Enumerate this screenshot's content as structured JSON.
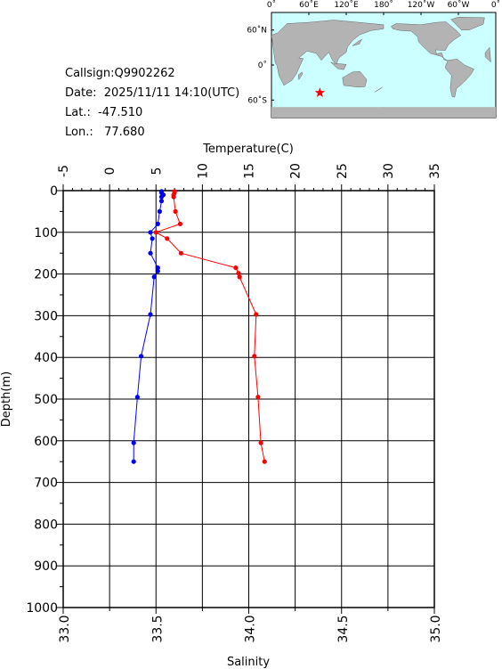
{
  "info": {
    "callsign": "Callsign:Q9902262",
    "date": "Date:  2025/11/11 14:10(UTC)",
    "lat": "Lat.:  -47.510",
    "lon": "Lon.:   77.680"
  },
  "map": {
    "lon_labels": [
      "0˚",
      "60˚E",
      "120˚E",
      "180˚",
      "120˚W",
      "60˚W",
      "0˚"
    ],
    "lat_labels": [
      "60˚N",
      "0˚",
      "60˚S"
    ],
    "ocean_color": "#ccffff",
    "land_color": "#b3b3b3",
    "marker": {
      "lon": 77.68,
      "lat": -47.51,
      "symbol": "star",
      "color": "#ff0000"
    }
  },
  "chart_data": {
    "type": "line",
    "ylabel": "Depth(m)",
    "ylim": [
      1000,
      0
    ],
    "y_ticks": [
      "0",
      "100",
      "200",
      "300",
      "400",
      "500",
      "600",
      "700",
      "800",
      "900",
      "1000"
    ],
    "grid": true,
    "x_top": {
      "label": "Temperature(C)",
      "lim": [
        -5,
        35
      ],
      "ticks": [
        "-5",
        "0",
        "5",
        "10",
        "15",
        "20",
        "25",
        "30",
        "35"
      ]
    },
    "x_bottom": {
      "label": "Salinity",
      "lim": [
        33.0,
        35.0
      ],
      "ticks": [
        "33.0",
        "33.5",
        "34.0",
        "34.5",
        "35.0"
      ]
    },
    "series": [
      {
        "axis": "x_top",
        "color": "#ff0000",
        "points": [
          [
            7.0,
            2
          ],
          [
            7.0,
            5
          ],
          [
            6.9,
            10
          ],
          [
            6.9,
            15
          ],
          [
            7.1,
            50
          ],
          [
            7.6,
            80
          ],
          [
            5.0,
            100
          ],
          [
            6.2,
            115
          ],
          [
            7.7,
            150
          ],
          [
            13.6,
            185
          ],
          [
            13.9,
            198
          ],
          [
            14.0,
            207
          ],
          [
            15.8,
            297
          ],
          [
            15.6,
            397
          ],
          [
            16.0,
            495
          ],
          [
            16.3,
            605
          ],
          [
            16.7,
            650
          ]
        ]
      },
      {
        "axis": "x_bottom",
        "color": "#0000ff",
        "points": [
          [
            33.53,
            2
          ],
          [
            33.53,
            5
          ],
          [
            33.54,
            10
          ],
          [
            33.53,
            15
          ],
          [
            33.53,
            25
          ],
          [
            33.52,
            50
          ],
          [
            33.51,
            80
          ],
          [
            33.47,
            100
          ],
          [
            33.48,
            115
          ],
          [
            33.47,
            150
          ],
          [
            33.51,
            185
          ],
          [
            33.51,
            193
          ],
          [
            33.49,
            207
          ],
          [
            33.47,
            297
          ],
          [
            33.42,
            397
          ],
          [
            33.4,
            495
          ],
          [
            33.38,
            605
          ],
          [
            33.38,
            650
          ]
        ]
      }
    ]
  }
}
